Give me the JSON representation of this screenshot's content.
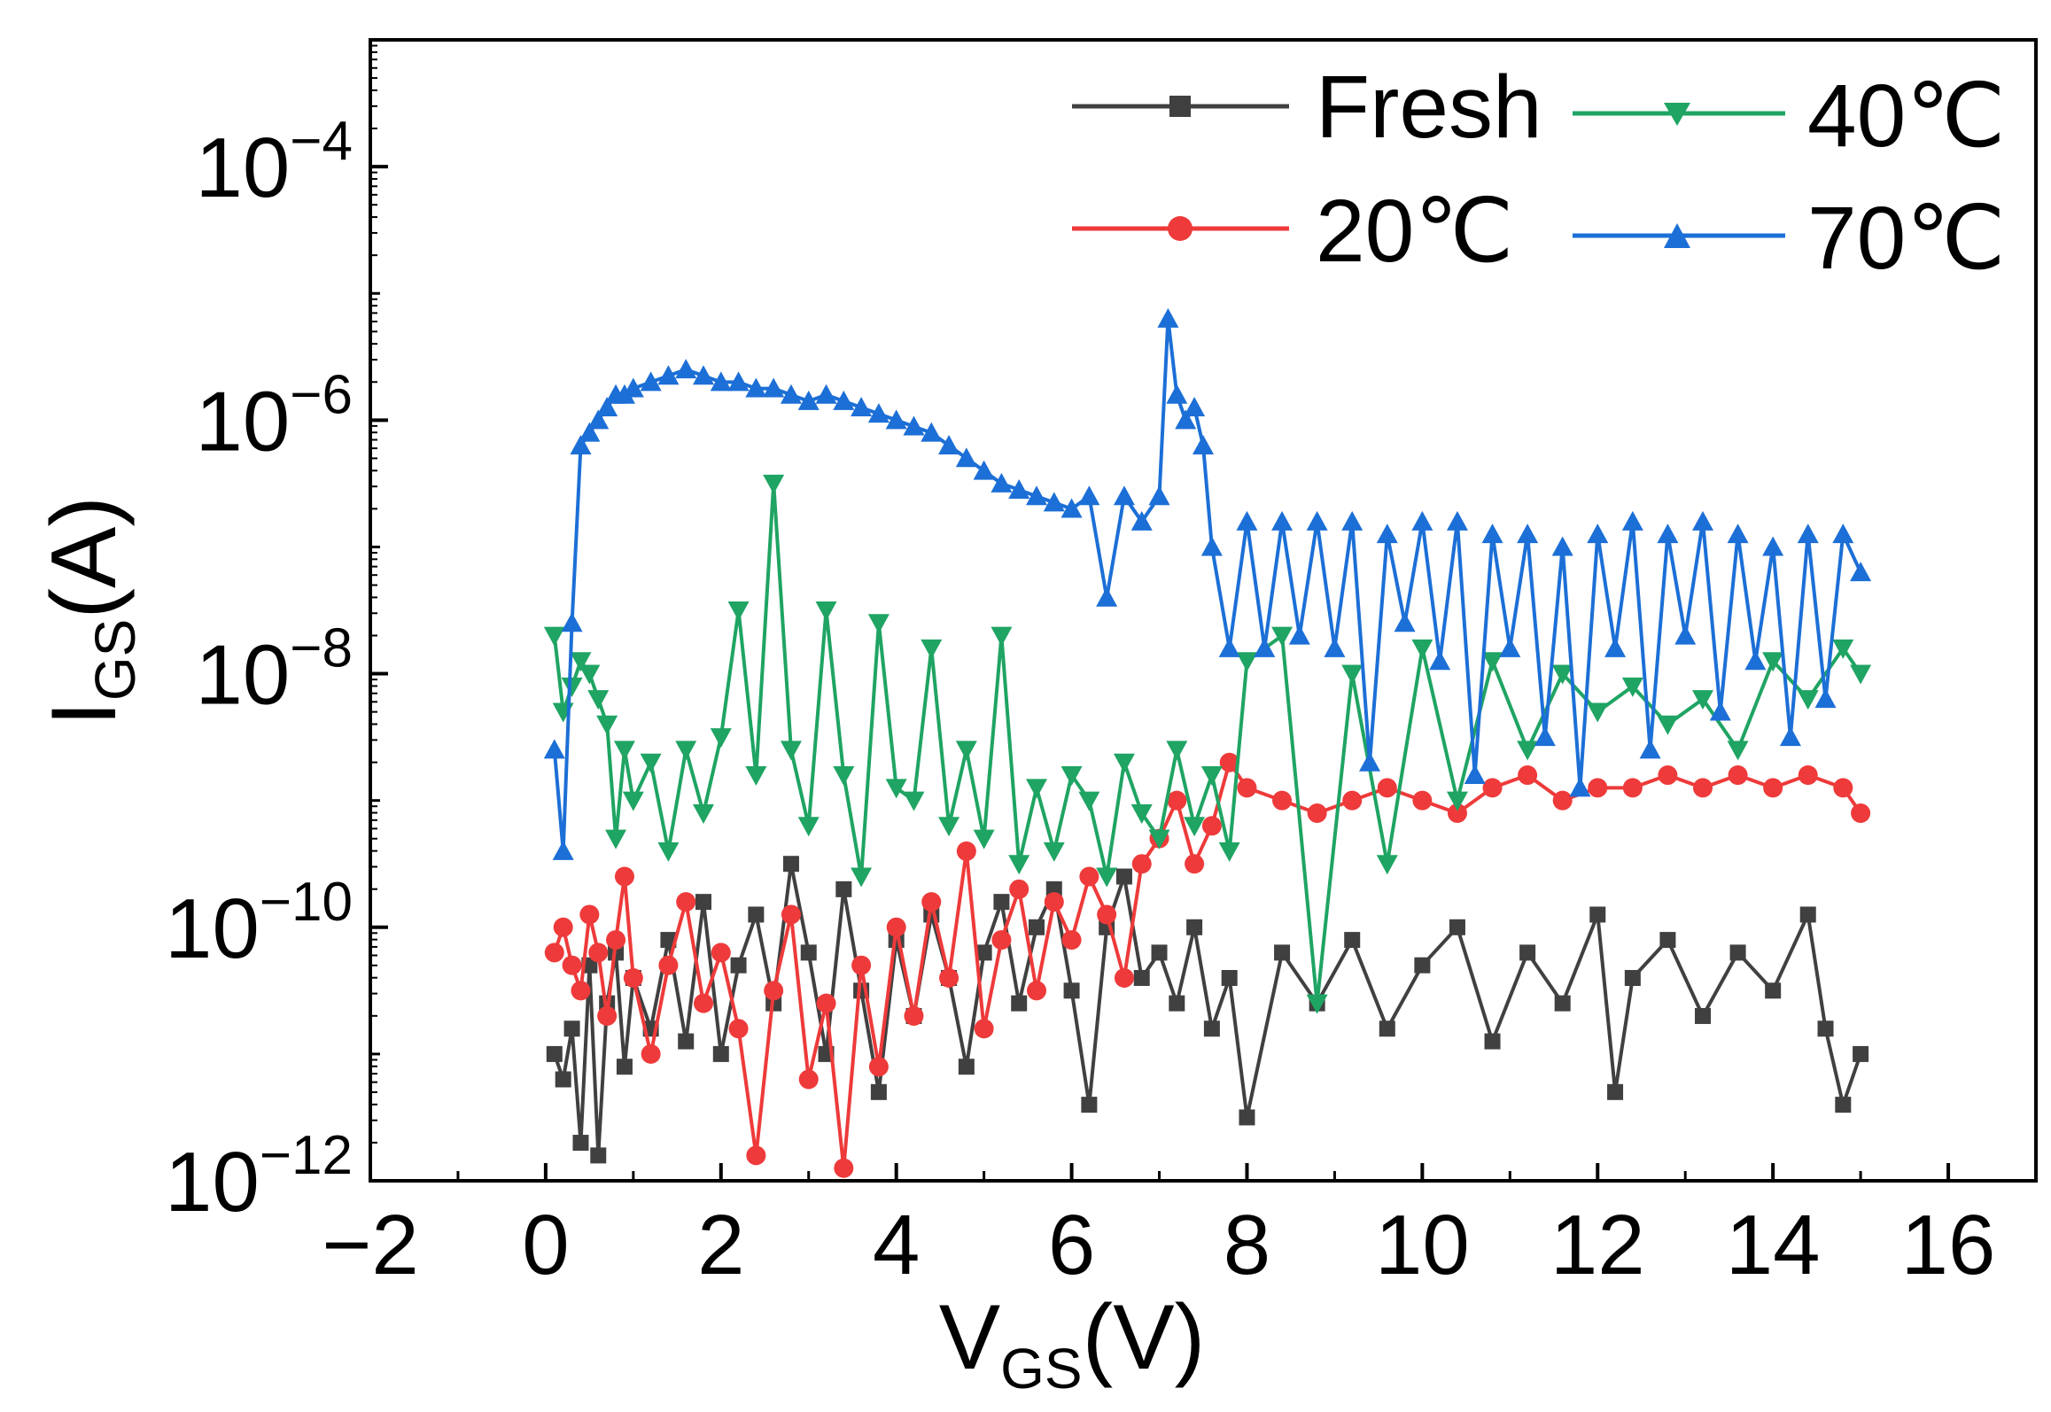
{
  "chart_data": {
    "type": "line",
    "xlabel": {
      "main": "V",
      "sub": "GS",
      "unit": "(V)"
    },
    "ylabel": {
      "main": "I",
      "sub": "GS",
      "unit": "(A)"
    },
    "xlim": [
      -2,
      17
    ],
    "ylim_log10": [
      -12,
      -3
    ],
    "y_scale": "log",
    "x_ticks": [
      -2,
      0,
      2,
      4,
      6,
      8,
      10,
      12,
      14,
      16
    ],
    "x_tick_labels": [
      "−2",
      "0",
      "2",
      "4",
      "6",
      "8",
      "10",
      "12",
      "14",
      "16"
    ],
    "y_tick_exponents": [
      -12,
      -10,
      -8,
      -6,
      -4
    ],
    "y_tick_labels": [
      {
        "base": "10",
        "exp": "−12"
      },
      {
        "base": "10",
        "exp": "−10"
      },
      {
        "base": "10",
        "exp": "−8"
      },
      {
        "base": "10",
        "exp": "−6"
      },
      {
        "base": "10",
        "exp": "−4"
      }
    ],
    "grid": false,
    "legend_position": "top-right",
    "legend": [
      "Fresh",
      "40℃",
      "20℃",
      "70℃"
    ],
    "series": [
      {
        "name": "Fresh",
        "color": "#404040",
        "marker": "square",
        "log10_y": {
          "x": [
            0.1,
            0.2,
            0.3,
            0.4,
            0.5,
            0.6,
            0.7,
            0.8,
            0.9,
            1.0,
            1.2,
            1.4,
            1.6,
            1.8,
            2.0,
            2.2,
            2.4,
            2.6,
            2.8,
            3.0,
            3.2,
            3.4,
            3.6,
            3.8,
            4.0,
            4.2,
            4.4,
            4.6,
            4.8,
            5.0,
            5.2,
            5.4,
            5.6,
            5.8,
            6.0,
            6.2,
            6.4,
            6.6,
            6.8,
            7.0,
            7.2,
            7.4,
            7.6,
            7.8,
            8.0,
            8.4,
            8.8,
            9.2,
            9.6,
            10.0,
            10.4,
            10.8,
            11.2,
            11.6,
            12.0,
            12.2,
            12.4,
            12.8,
            13.2,
            13.6,
            14.0,
            14.4,
            14.6,
            14.8,
            15.0
          ],
          "y": [
            -11.0,
            -11.2,
            -10.8,
            -11.7,
            -10.3,
            -11.8,
            -10.6,
            -10.2,
            -11.1,
            -10.4,
            -10.8,
            -10.1,
            -10.9,
            -9.8,
            -11.0,
            -10.3,
            -9.9,
            -10.6,
            -9.5,
            -10.2,
            -11.0,
            -9.7,
            -10.5,
            -11.3,
            -10.1,
            -10.7,
            -9.9,
            -10.4,
            -11.1,
            -10.2,
            -9.8,
            -10.6,
            -10.0,
            -9.7,
            -10.5,
            -11.4,
            -10.0,
            -9.6,
            -10.4,
            -10.2,
            -10.6,
            -10.0,
            -10.8,
            -10.4,
            -11.5,
            -10.2,
            -10.6,
            -10.1,
            -10.8,
            -10.3,
            -10.0,
            -10.9,
            -10.2,
            -10.6,
            -9.9,
            -11.3,
            -10.4,
            -10.1,
            -10.7,
            -10.2,
            -10.5,
            -9.9,
            -10.8,
            -11.4,
            -11.0
          ]
        }
      },
      {
        "name": "20℃",
        "color": "#ee3a3a",
        "marker": "circle",
        "log10_y": {
          "x": [
            0.1,
            0.2,
            0.3,
            0.4,
            0.5,
            0.6,
            0.7,
            0.8,
            0.9,
            1.0,
            1.2,
            1.4,
            1.6,
            1.8,
            2.0,
            2.2,
            2.4,
            2.6,
            2.8,
            3.0,
            3.2,
            3.4,
            3.6,
            3.8,
            4.0,
            4.2,
            4.4,
            4.6,
            4.8,
            5.0,
            5.2,
            5.4,
            5.6,
            5.8,
            6.0,
            6.2,
            6.4,
            6.6,
            6.8,
            7.0,
            7.2,
            7.4,
            7.6,
            7.8,
            8.0,
            8.4,
            8.8,
            9.2,
            9.6,
            10.0,
            10.4,
            10.8,
            11.2,
            11.6,
            12.0,
            12.4,
            12.8,
            13.2,
            13.6,
            14.0,
            14.4,
            14.8,
            15.0
          ],
          "y": [
            -10.2,
            -10.0,
            -10.3,
            -10.5,
            -9.9,
            -10.2,
            -10.7,
            -10.1,
            -9.6,
            -10.4,
            -11.0,
            -10.3,
            -9.8,
            -10.6,
            -10.2,
            -10.8,
            -11.8,
            -10.5,
            -9.9,
            -11.2,
            -10.6,
            -11.9,
            -10.3,
            -11.1,
            -10.0,
            -10.7,
            -9.8,
            -10.4,
            -9.4,
            -10.8,
            -10.1,
            -9.7,
            -10.5,
            -9.8,
            -10.1,
            -9.6,
            -9.9,
            -10.4,
            -9.5,
            -9.3,
            -9.0,
            -9.5,
            -9.2,
            -8.7,
            -8.9,
            -9.0,
            -9.1,
            -9.0,
            -8.9,
            -9.0,
            -9.1,
            -8.9,
            -8.8,
            -9.0,
            -8.9,
            -8.9,
            -8.8,
            -8.9,
            -8.8,
            -8.9,
            -8.8,
            -8.9,
            -9.1
          ]
        }
      },
      {
        "name": "40℃",
        "color": "#1fa463",
        "marker": "triangle-down",
        "log10_y": {
          "x": [
            0.1,
            0.2,
            0.3,
            0.4,
            0.5,
            0.6,
            0.7,
            0.8,
            0.9,
            1.0,
            1.2,
            1.4,
            1.6,
            1.8,
            2.0,
            2.2,
            2.4,
            2.6,
            2.8,
            3.0,
            3.2,
            3.4,
            3.6,
            3.8,
            4.0,
            4.2,
            4.4,
            4.6,
            4.8,
            5.0,
            5.2,
            5.4,
            5.6,
            5.8,
            6.0,
            6.2,
            6.4,
            6.6,
            6.8,
            7.0,
            7.2,
            7.4,
            7.6,
            7.8,
            8.0,
            8.4,
            8.8,
            9.2,
            9.6,
            10.0,
            10.4,
            10.8,
            11.2,
            11.6,
            12.0,
            12.4,
            12.8,
            13.2,
            13.6,
            14.0,
            14.4,
            14.8,
            15.0
          ],
          "y": [
            -7.7,
            -8.3,
            -8.1,
            -7.9,
            -8.0,
            -8.2,
            -8.4,
            -9.3,
            -8.6,
            -9.0,
            -8.7,
            -9.4,
            -8.6,
            -9.1,
            -8.5,
            -7.5,
            -8.8,
            -6.5,
            -8.6,
            -9.2,
            -7.5,
            -8.8,
            -9.6,
            -7.6,
            -8.9,
            -9.0,
            -7.8,
            -9.2,
            -8.6,
            -9.3,
            -7.7,
            -9.5,
            -8.9,
            -9.4,
            -8.8,
            -9.0,
            -9.6,
            -8.7,
            -9.1,
            -9.3,
            -8.6,
            -9.2,
            -8.8,
            -9.4,
            -7.9,
            -7.7,
            -10.6,
            -8.0,
            -9.5,
            -7.8,
            -9.0,
            -7.9,
            -8.6,
            -8.0,
            -8.3,
            -8.1,
            -8.4,
            -8.2,
            -8.6,
            -7.9,
            -8.2,
            -7.8,
            -8.0
          ]
        }
      },
      {
        "name": "70℃",
        "color": "#1c6fd6",
        "marker": "triangle-up",
        "log10_y": {
          "x": [
            0.1,
            0.2,
            0.3,
            0.4,
            0.5,
            0.6,
            0.7,
            0.8,
            0.9,
            1.0,
            1.2,
            1.4,
            1.6,
            1.8,
            2.0,
            2.2,
            2.4,
            2.6,
            2.8,
            3.0,
            3.2,
            3.4,
            3.6,
            3.8,
            4.0,
            4.2,
            4.4,
            4.6,
            4.8,
            5.0,
            5.2,
            5.4,
            5.6,
            5.8,
            6.0,
            6.2,
            6.4,
            6.6,
            6.8,
            7.0,
            7.1,
            7.2,
            7.3,
            7.4,
            7.5,
            7.6,
            7.8,
            8.0,
            8.2,
            8.4,
            8.6,
            8.8,
            9.0,
            9.2,
            9.4,
            9.6,
            9.8,
            10.0,
            10.2,
            10.4,
            10.6,
            10.8,
            11.0,
            11.2,
            11.4,
            11.6,
            11.8,
            12.0,
            12.2,
            12.4,
            12.6,
            12.8,
            13.0,
            13.2,
            13.4,
            13.6,
            13.8,
            14.0,
            14.2,
            14.4,
            14.6,
            14.8,
            15.0
          ],
          "y": [
            -8.6,
            -9.4,
            -7.6,
            -6.2,
            -6.1,
            -6.0,
            -5.9,
            -5.8,
            -5.8,
            -5.75,
            -5.7,
            -5.65,
            -5.6,
            -5.65,
            -5.7,
            -5.7,
            -5.75,
            -5.75,
            -5.8,
            -5.85,
            -5.8,
            -5.85,
            -5.9,
            -5.95,
            -6.0,
            -6.05,
            -6.1,
            -6.2,
            -6.3,
            -6.4,
            -6.5,
            -6.55,
            -6.6,
            -6.65,
            -6.7,
            -6.6,
            -7.4,
            -6.6,
            -6.8,
            -6.6,
            -5.2,
            -5.8,
            -6.0,
            -5.9,
            -6.2,
            -7.0,
            -7.8,
            -6.8,
            -7.8,
            -6.8,
            -7.7,
            -6.8,
            -7.8,
            -6.8,
            -8.7,
            -6.9,
            -7.6,
            -6.8,
            -7.9,
            -6.8,
            -8.8,
            -6.9,
            -7.8,
            -6.9,
            -8.5,
            -7.0,
            -8.9,
            -6.9,
            -7.8,
            -6.8,
            -8.6,
            -6.9,
            -7.7,
            -6.8,
            -8.3,
            -6.9,
            -7.9,
            -7.0,
            -8.5,
            -6.9,
            -8.2,
            -6.9,
            -7.2
          ]
        }
      }
    ]
  }
}
